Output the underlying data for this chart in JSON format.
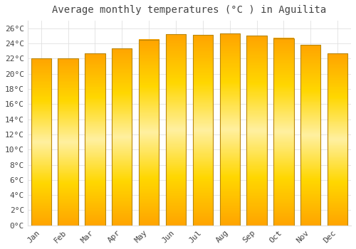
{
  "title": "Average monthly temperatures (°C ) in Aguilita",
  "months": [
    "Jan",
    "Feb",
    "Mar",
    "Apr",
    "May",
    "Jun",
    "Jul",
    "Aug",
    "Sep",
    "Oct",
    "Nov",
    "Dec"
  ],
  "values": [
    22.0,
    22.0,
    22.7,
    23.3,
    24.5,
    25.2,
    25.1,
    25.3,
    25.0,
    24.7,
    23.8,
    22.7
  ],
  "bar_color_center": "#FFD700",
  "bar_color_edge": "#FFA500",
  "bar_outline_color": "#B8860B",
  "background_color": "#FFFFFF",
  "plot_bg_color": "#FFFFFF",
  "grid_color": "#E0E0E0",
  "text_color": "#444444",
  "ylim": [
    0,
    27
  ],
  "yticks": [
    0,
    2,
    4,
    6,
    8,
    10,
    12,
    14,
    16,
    18,
    20,
    22,
    24,
    26
  ],
  "title_fontsize": 10,
  "tick_fontsize": 8,
  "font_family": "monospace"
}
